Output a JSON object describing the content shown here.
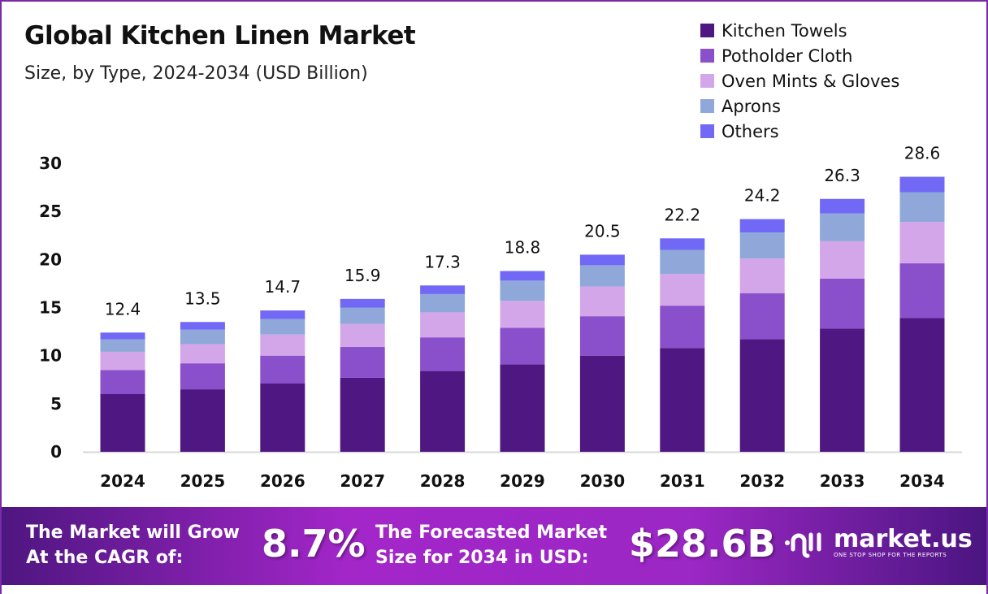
{
  "chart_data": {
    "type": "bar",
    "stacked": true,
    "title": "Global Kitchen Linen Market",
    "subtitle": "Size, by Type, 2024-2034 (USD Billion)",
    "categories": [
      "2024",
      "2025",
      "2026",
      "2027",
      "2028",
      "2029",
      "2030",
      "2031",
      "2032",
      "2033",
      "2034"
    ],
    "totals": [
      "12.4",
      "13.5",
      "14.7",
      "15.9",
      "17.3",
      "18.8",
      "20.5",
      "22.2",
      "24.2",
      "26.3",
      "28.6"
    ],
    "series": [
      {
        "name": "Kitchen Towels",
        "color": "#4f1781",
        "values": [
          6.0,
          6.5,
          7.1,
          7.7,
          8.4,
          9.1,
          10.0,
          10.8,
          11.7,
          12.8,
          13.9
        ]
      },
      {
        "name": "Potholder Cloth",
        "color": "#8a4fcb",
        "values": [
          2.5,
          2.7,
          2.9,
          3.2,
          3.5,
          3.8,
          4.1,
          4.4,
          4.8,
          5.2,
          5.7
        ]
      },
      {
        "name": "Oven Mints & Gloves",
        "color": "#d2a6e8",
        "values": [
          1.9,
          2.0,
          2.2,
          2.4,
          2.6,
          2.8,
          3.1,
          3.3,
          3.6,
          3.9,
          4.3
        ]
      },
      {
        "name": "Aprons",
        "color": "#8fa8d9",
        "values": [
          1.3,
          1.5,
          1.6,
          1.7,
          1.9,
          2.1,
          2.2,
          2.5,
          2.7,
          2.9,
          3.1
        ]
      },
      {
        "name": "Others",
        "color": "#7169f5",
        "values": [
          0.7,
          0.8,
          0.9,
          0.9,
          0.9,
          1.0,
          1.1,
          1.2,
          1.4,
          1.5,
          1.6
        ]
      }
    ],
    "yticks": [
      "0",
      "5",
      "10",
      "15",
      "20",
      "25",
      "30"
    ],
    "ylim": [
      0,
      30
    ],
    "grid": false,
    "legend_position": "top-right"
  },
  "banner": {
    "cagr_label_1": "The Market will Grow",
    "cagr_label_2": "At the CAGR of:",
    "cagr_value": "8.7%",
    "forecast_label_1": "The Forecasted Market",
    "forecast_label_2": "Size for 2034 in USD:",
    "forecast_value": "$28.6B",
    "logo_text": "market.us",
    "logo_tagline": "ONE STOP SHOP FOR THE REPORTS"
  }
}
